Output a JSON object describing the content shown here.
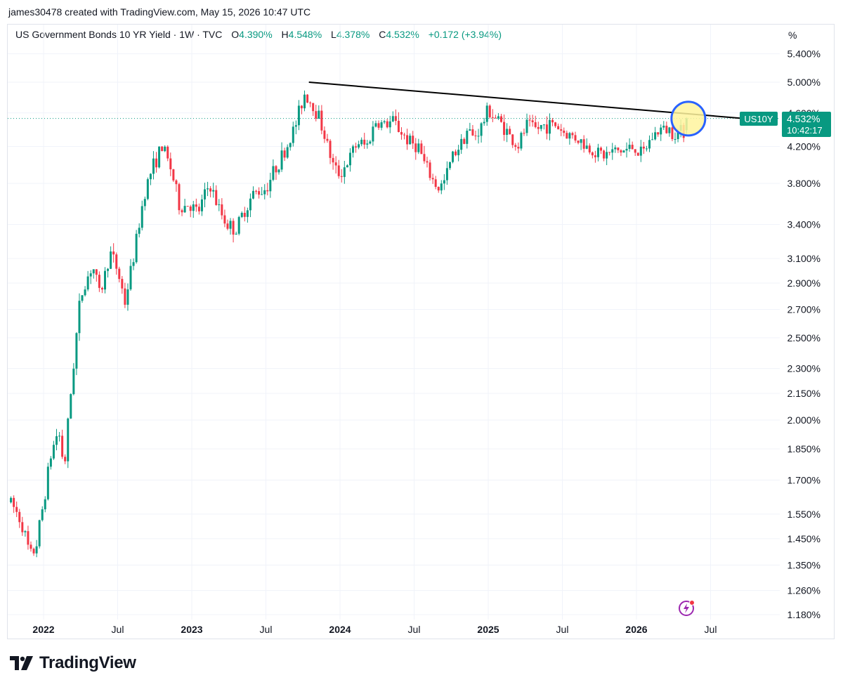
{
  "header": {
    "credit": "james30478 created with TradingView.com, May 15, 2026 10:47 UTC"
  },
  "legend": {
    "title": "US Government Bonds 10 YR Yield · 1W · TVC",
    "o_label": "O",
    "o_value": "4.390%",
    "h_label": "H",
    "h_value": "4.548%",
    "l_label": "L",
    "l_value": "4.378%",
    "c_label": "C",
    "c_value": "4.532%",
    "change": "+0.172 (+3.94%)"
  },
  "axis_unit": "%",
  "price_tag": {
    "symbol": "US10Y",
    "price": "4.532%",
    "countdown": "10:42:17"
  },
  "footer": {
    "logo_text": "TradingView"
  },
  "colors": {
    "up": "#089981",
    "down": "#f23645",
    "accent": "#2962ff",
    "highlight": "#fff59d",
    "trendline": "#000000"
  },
  "chart_data": {
    "type": "candlestick",
    "scale": "log",
    "y_ticks": [
      "5.400%",
      "5.000%",
      "4.600%",
      "4.200%",
      "3.800%",
      "3.400%",
      "3.100%",
      "2.900%",
      "2.700%",
      "2.500%",
      "2.300%",
      "2.150%",
      "2.000%",
      "1.850%",
      "1.700%",
      "1.550%",
      "1.450%",
      "1.350%",
      "1.260%",
      "1.180%"
    ],
    "y_tick_values": [
      5.4,
      5.0,
      4.6,
      4.2,
      3.8,
      3.4,
      3.1,
      2.9,
      2.7,
      2.5,
      2.3,
      2.15,
      2.0,
      1.85,
      1.7,
      1.55,
      1.45,
      1.35,
      1.26,
      1.18
    ],
    "x_ticks": [
      {
        "label": "2022",
        "bold": true,
        "t": 0
      },
      {
        "label": "Jul",
        "bold": false,
        "t": 0.5
      },
      {
        "label": "2023",
        "bold": true,
        "t": 1
      },
      {
        "label": "Jul",
        "bold": false,
        "t": 1.5
      },
      {
        "label": "2024",
        "bold": true,
        "t": 2
      },
      {
        "label": "Jul",
        "bold": false,
        "t": 2.5
      },
      {
        "label": "2025",
        "bold": true,
        "t": 3
      },
      {
        "label": "Jul",
        "bold": false,
        "t": 3.5
      },
      {
        "label": "2026",
        "bold": true,
        "t": 4
      },
      {
        "label": "Jul",
        "bold": false,
        "t": 4.5
      }
    ],
    "last_close": 4.532,
    "trendline": {
      "start": {
        "t": 1.79,
        "y": 5.0
      },
      "end": {
        "t": 4.72,
        "y": 4.532
      }
    },
    "highlight_circle": {
      "t": 4.35,
      "y": 4.53
    },
    "path_points": [
      [
        -0.22,
        1.6
      ],
      [
        -0.15,
        1.52
      ],
      [
        -0.09,
        1.38
      ],
      [
        -0.05,
        1.42
      ],
      [
        0.0,
        1.6
      ],
      [
        0.05,
        1.82
      ],
      [
        0.1,
        1.95
      ],
      [
        0.14,
        1.75
      ],
      [
        0.2,
        2.3
      ],
      [
        0.25,
        2.8
      ],
      [
        0.33,
        3.05
      ],
      [
        0.38,
        2.8
      ],
      [
        0.45,
        3.15
      ],
      [
        0.5,
        3.0
      ],
      [
        0.55,
        2.75
      ],
      [
        0.62,
        3.2
      ],
      [
        0.68,
        3.7
      ],
      [
        0.73,
        3.95
      ],
      [
        0.8,
        4.2
      ],
      [
        0.86,
        3.95
      ],
      [
        0.92,
        3.55
      ],
      [
        0.98,
        3.6
      ],
      [
        1.04,
        3.5
      ],
      [
        1.12,
        3.8
      ],
      [
        1.18,
        3.55
      ],
      [
        1.24,
        3.4
      ],
      [
        1.3,
        3.35
      ],
      [
        1.36,
        3.55
      ],
      [
        1.42,
        3.7
      ],
      [
        1.5,
        3.75
      ],
      [
        1.56,
        3.95
      ],
      [
        1.63,
        4.15
      ],
      [
        1.7,
        4.45
      ],
      [
        1.76,
        4.85
      ],
      [
        1.8,
        4.75
      ],
      [
        1.86,
        4.55
      ],
      [
        1.9,
        4.3
      ],
      [
        1.96,
        3.95
      ],
      [
        2.0,
        3.9
      ],
      [
        2.06,
        4.05
      ],
      [
        2.12,
        4.25
      ],
      [
        2.18,
        4.2
      ],
      [
        2.24,
        4.5
      ],
      [
        2.3,
        4.45
      ],
      [
        2.36,
        4.5
      ],
      [
        2.42,
        4.35
      ],
      [
        2.47,
        4.25
      ],
      [
        2.53,
        4.2
      ],
      [
        2.57,
        4.0
      ],
      [
        2.62,
        3.85
      ],
      [
        2.66,
        3.75
      ],
      [
        2.7,
        3.8
      ],
      [
        2.76,
        4.1
      ],
      [
        2.82,
        4.25
      ],
      [
        2.86,
        4.4
      ],
      [
        2.9,
        4.3
      ],
      [
        2.96,
        4.45
      ],
      [
        3.0,
        4.65
      ],
      [
        3.04,
        4.55
      ],
      [
        3.1,
        4.45
      ],
      [
        3.15,
        4.3
      ],
      [
        3.2,
        4.2
      ],
      [
        3.26,
        4.45
      ],
      [
        3.32,
        4.4
      ],
      [
        3.38,
        4.45
      ],
      [
        3.46,
        4.45
      ],
      [
        3.52,
        4.35
      ],
      [
        3.6,
        4.3
      ],
      [
        3.66,
        4.2
      ],
      [
        3.72,
        4.15
      ],
      [
        3.78,
        4.1
      ],
      [
        3.86,
        4.15
      ],
      [
        3.92,
        4.15
      ],
      [
        3.98,
        4.2
      ],
      [
        4.04,
        4.1
      ],
      [
        4.1,
        4.3
      ],
      [
        4.16,
        4.4
      ],
      [
        4.22,
        4.4
      ],
      [
        4.27,
        4.36
      ],
      [
        4.32,
        4.39
      ],
      [
        4.35,
        4.532
      ]
    ],
    "seed": 7
  }
}
